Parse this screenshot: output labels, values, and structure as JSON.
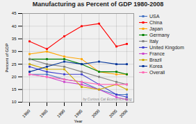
{
  "chart_data": {
    "type": "line",
    "title": "Manufacturing as Percent of GDP 1980-2008",
    "xlabel": "Year",
    "ylabel": "Percent of GDP",
    "x": [
      1980,
      1985,
      1990,
      1995,
      2000,
      2005,
      2008
    ],
    "series": [
      {
        "name": "USA",
        "color": "#4472C4",
        "marker": "square",
        "values": [
          21,
          21,
          19,
          18,
          15,
          13,
          13
        ]
      },
      {
        "name": "China",
        "color": "#FF0000",
        "marker": "square",
        "values": [
          34,
          31,
          36,
          40,
          41,
          32,
          33
        ]
      },
      {
        "name": "Japan",
        "color": "#FFA500",
        "marker": "square",
        "values": [
          29,
          30,
          28,
          27,
          22,
          21,
          21
        ]
      },
      {
        "name": "Germany",
        "color": "#008000",
        "marker": "square",
        "values": [
          27,
          27,
          27,
          25,
          22,
          22,
          21
        ]
      },
      {
        "name": "Italy",
        "color": "#808080",
        "marker": "square",
        "values": [
          27,
          25,
          24,
          22,
          20,
          18,
          17
        ]
      },
      {
        "name": "United Kingdom",
        "color": "#4040CC",
        "marker": "square",
        "values": [
          24,
          22,
          21,
          21,
          17,
          13,
          12
        ]
      },
      {
        "name": "France",
        "color": "#CC44CC",
        "marker": "square",
        "values": [
          21,
          20,
          18,
          17,
          15,
          12,
          11
        ]
      },
      {
        "name": "Brazil",
        "color": "#CCAA00",
        "marker": "square",
        "values": [
          25,
          23,
          23,
          16,
          15,
          17,
          15
        ]
      },
      {
        "name": "Korea",
        "color": "#003399",
        "marker": "square",
        "values": [
          22,
          24,
          26,
          25,
          26,
          25,
          25
        ]
      },
      {
        "name": "Overall",
        "color": "#FF69B4",
        "marker": "square",
        "values": [
          21,
          20,
          19,
          18,
          17,
          17,
          17
        ]
      }
    ],
    "xlim": [
      1978,
      2010
    ],
    "xticks": [
      1980,
      1985,
      1990,
      1995,
      2000,
      2005,
      2008
    ],
    "ylim": [
      10,
      45
    ],
    "yticks": [
      10,
      15,
      20,
      25,
      30,
      35,
      40,
      45
    ],
    "grid": true,
    "legend": "right",
    "annotations": [
      "by Curious Cat Economics Blog"
    ]
  }
}
